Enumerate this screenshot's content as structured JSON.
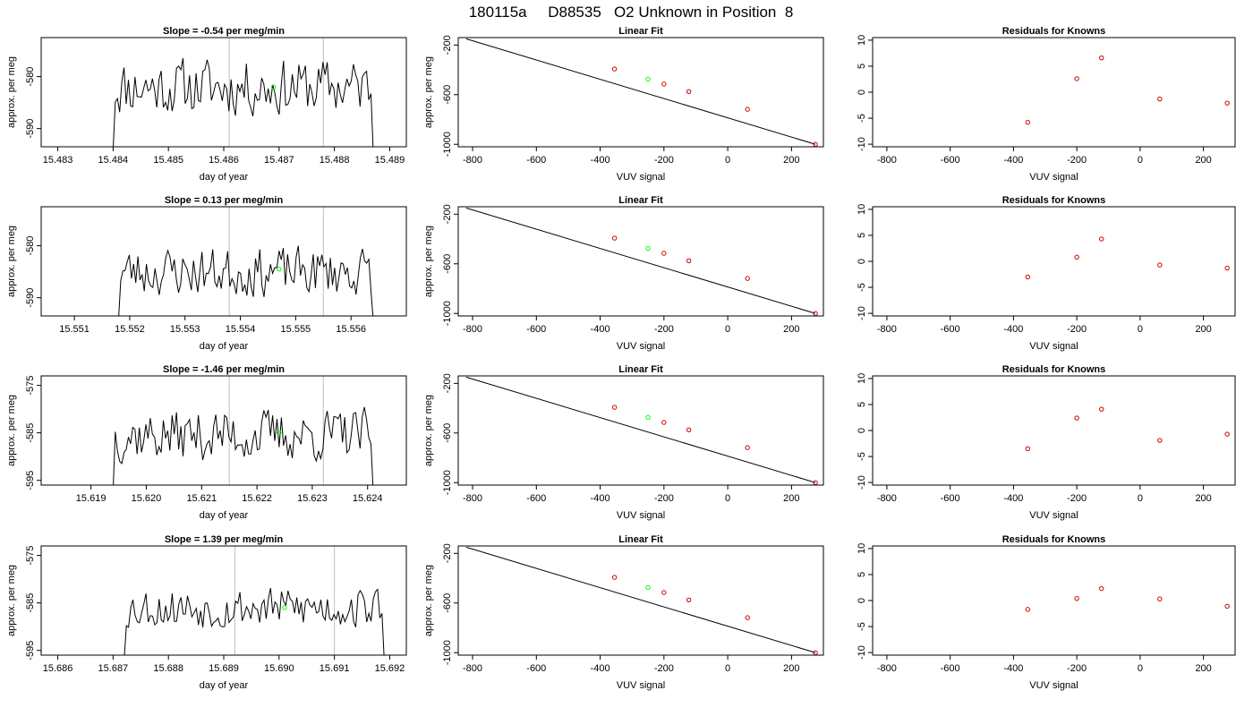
{
  "figure_title": "180115a     D88535   O2 Unknown in Position  8",
  "colors": {
    "trace": "#000000",
    "cursor_line": "#bebebe",
    "highlight": "#00ff00",
    "residual": "#cc0000",
    "frame": "#000000"
  },
  "chart_data": [
    {
      "type": "line",
      "title": "Slope =  -0.54  per meg/min",
      "xlabel": "day of year",
      "ylabel": "approx. per meg",
      "xlim": [
        15.4827,
        15.4893
      ],
      "ylim": [
        -593.5,
        -572.5
      ],
      "xticks": [
        15.483,
        15.484,
        15.485,
        15.486,
        15.487,
        15.488,
        15.489
      ],
      "yticks": [
        -590,
        -580
      ],
      "vlines": [
        15.4861,
        15.4878
      ],
      "highlight_point": {
        "x": 15.4869,
        "y": -582
      },
      "series": [
        {
          "x_start": 15.484,
          "x_end": 15.4887,
          "points": 120,
          "base": -582,
          "amp": 3.5,
          "seed": 11,
          "drop_start": -594,
          "drop_end": -594
        }
      ]
    },
    {
      "type": "scatter",
      "title": "Linear Fit",
      "xlabel": "VUV signal",
      "ylabel": "approx. per meg",
      "xlim": [
        -845,
        300
      ],
      "ylim": [
        -1020,
        -140
      ],
      "xticks": [
        -800,
        -600,
        -400,
        -200,
        0,
        200
      ],
      "yticks": [
        -1000,
        -600,
        -200
      ],
      "fit_line": [
        [
          -820,
          -150
        ],
        [
          275,
          -1000
        ]
      ],
      "points": [
        [
          -355,
          -393
        ],
        [
          -200,
          -515
        ],
        [
          -122,
          -575
        ],
        [
          62,
          -718
        ],
        [
          275,
          -1000
        ]
      ],
      "highlight_point": [
        -250,
        -475
      ]
    },
    {
      "type": "scatter",
      "title": "Residuals for Knowns",
      "xlabel": "VUV signal",
      "ylabel": "",
      "xlim": [
        -845,
        300
      ],
      "ylim": [
        -10.5,
        10.5
      ],
      "xticks": [
        -800,
        -600,
        -400,
        -200,
        0,
        200
      ],
      "yticks": [
        -10,
        -5,
        0,
        5,
        10
      ],
      "points": [
        [
          -355,
          -5.8
        ],
        [
          -200,
          2.6
        ],
        [
          -122,
          6.6
        ],
        [
          62,
          -1.3
        ],
        [
          275,
          -2.1
        ]
      ]
    },
    {
      "type": "line",
      "title": "Slope =  0.13  per meg/min",
      "xlabel": "day of year",
      "ylabel": "approx. per meg",
      "xlim": [
        15.5504,
        15.557
      ],
      "ylim": [
        -593.5,
        -572.5
      ],
      "xticks": [
        15.551,
        15.552,
        15.553,
        15.554,
        15.555,
        15.556
      ],
      "yticks": [
        -590,
        -580
      ],
      "vlines": [
        15.5538,
        15.5555
      ],
      "highlight_point": {
        "x": 15.5547,
        "y": -584.5
      },
      "series": [
        {
          "x_start": 15.5518,
          "x_end": 15.5564,
          "points": 120,
          "base": -585,
          "amp": 3.0,
          "seed": 23,
          "drop_start": -594,
          "drop_end": -594
        }
      ]
    },
    {
      "type": "scatter",
      "title": "Linear Fit",
      "xlabel": "VUV signal",
      "ylabel": "approx. per meg",
      "xlim": [
        -845,
        300
      ],
      "ylim": [
        -1020,
        -140
      ],
      "xticks": [
        -800,
        -600,
        -400,
        -200,
        0,
        200
      ],
      "yticks": [
        -1000,
        -600,
        -200
      ],
      "fit_line": [
        [
          -820,
          -150
        ],
        [
          275,
          -1000
        ]
      ],
      "points": [
        [
          -355,
          -393
        ],
        [
          -200,
          -515
        ],
        [
          -122,
          -575
        ],
        [
          62,
          -718
        ],
        [
          275,
          -1000
        ]
      ],
      "highlight_point": [
        -250,
        -475
      ]
    },
    {
      "type": "scatter",
      "title": "Residuals for Knowns",
      "xlabel": "VUV signal",
      "ylabel": "",
      "xlim": [
        -845,
        300
      ],
      "ylim": [
        -10.5,
        10.5
      ],
      "xticks": [
        -800,
        -600,
        -400,
        -200,
        0,
        200
      ],
      "yticks": [
        -10,
        -5,
        0,
        5,
        10
      ],
      "points": [
        [
          -355,
          -3
        ],
        [
          -200,
          0.8
        ],
        [
          -122,
          4.3
        ],
        [
          62,
          -0.7
        ],
        [
          275,
          -1.3
        ]
      ]
    },
    {
      "type": "line",
      "title": "Slope =  -1.46  per meg/min",
      "xlabel": "day of year",
      "ylabel": "approx. per meg",
      "xlim": [
        15.6181,
        15.6247
      ],
      "ylim": [
        -596,
        -573
      ],
      "xticks": [
        15.619,
        15.62,
        15.621,
        15.622,
        15.623,
        15.624
      ],
      "yticks": [
        -595,
        -585,
        -575
      ],
      "vlines": [
        15.6215,
        15.6232
      ],
      "highlight_point": {
        "x": 15.6224,
        "y": -585
      },
      "series": [
        {
          "x_start": 15.6194,
          "x_end": 15.6241,
          "points": 120,
          "base": -585.5,
          "amp": 3.5,
          "seed": 37,
          "drop_start": -597,
          "drop_end": -597
        }
      ]
    },
    {
      "type": "scatter",
      "title": "Linear Fit",
      "xlabel": "VUV signal",
      "ylabel": "approx. per meg",
      "xlim": [
        -845,
        300
      ],
      "ylim": [
        -1020,
        -140
      ],
      "xticks": [
        -800,
        -600,
        -400,
        -200,
        0,
        200
      ],
      "yticks": [
        -1000,
        -600,
        -200
      ],
      "fit_line": [
        [
          -820,
          -150
        ],
        [
          275,
          -1000
        ]
      ],
      "points": [
        [
          -355,
          -393
        ],
        [
          -200,
          -515
        ],
        [
          -122,
          -575
        ],
        [
          62,
          -718
        ],
        [
          275,
          -1000
        ]
      ],
      "highlight_point": [
        -250,
        -475
      ]
    },
    {
      "type": "scatter",
      "title": "Residuals for Knowns",
      "xlabel": "VUV signal",
      "ylabel": "",
      "xlim": [
        -845,
        300
      ],
      "ylim": [
        -10.5,
        10.5
      ],
      "xticks": [
        -800,
        -600,
        -400,
        -200,
        0,
        200
      ],
      "yticks": [
        -10,
        -5,
        0,
        5,
        10
      ],
      "points": [
        [
          -355,
          -3.5
        ],
        [
          -200,
          2.4
        ],
        [
          -122,
          4.1
        ],
        [
          62,
          -1.9
        ],
        [
          275,
          -0.7
        ]
      ]
    },
    {
      "type": "line",
      "title": "Slope =  1.39  per meg/min",
      "xlabel": "day of year",
      "ylabel": "approx. per meg",
      "xlim": [
        15.6857,
        15.6923
      ],
      "ylim": [
        -596,
        -573
      ],
      "xticks": [
        15.686,
        15.687,
        15.688,
        15.689,
        15.69,
        15.691,
        15.692
      ],
      "yticks": [
        -595,
        -585,
        -575
      ],
      "vlines": [
        15.6892,
        15.691
      ],
      "highlight_point": {
        "x": 15.6901,
        "y": -586
      },
      "series": [
        {
          "x_start": 15.6872,
          "x_end": 15.6919,
          "points": 120,
          "base": -586,
          "amp": 2.8,
          "seed": 53,
          "drop_start": -597,
          "drop_end": -597
        }
      ]
    },
    {
      "type": "scatter",
      "title": "Linear Fit",
      "xlabel": "VUV signal",
      "ylabel": "approx. per meg",
      "xlim": [
        -845,
        300
      ],
      "ylim": [
        -1020,
        -140
      ],
      "xticks": [
        -800,
        -600,
        -400,
        -200,
        0,
        200
      ],
      "yticks": [
        -1000,
        -600,
        -200
      ],
      "fit_line": [
        [
          -820,
          -150
        ],
        [
          275,
          -1000
        ]
      ],
      "points": [
        [
          -355,
          -393
        ],
        [
          -200,
          -515
        ],
        [
          -122,
          -575
        ],
        [
          62,
          -718
        ],
        [
          275,
          -1000
        ]
      ],
      "highlight_point": [
        -250,
        -475
      ]
    },
    {
      "type": "scatter",
      "title": "Residuals for Knowns",
      "xlabel": "VUV signal",
      "ylabel": "",
      "xlim": [
        -845,
        300
      ],
      "ylim": [
        -10.5,
        10.5
      ],
      "xticks": [
        -800,
        -600,
        -400,
        -200,
        0,
        200
      ],
      "yticks": [
        -10,
        -5,
        0,
        5,
        10
      ],
      "points": [
        [
          -355,
          -1.7
        ],
        [
          -200,
          0.4
        ],
        [
          -122,
          2.3
        ],
        [
          62,
          0.3
        ],
        [
          275,
          -1.1
        ]
      ]
    }
  ]
}
